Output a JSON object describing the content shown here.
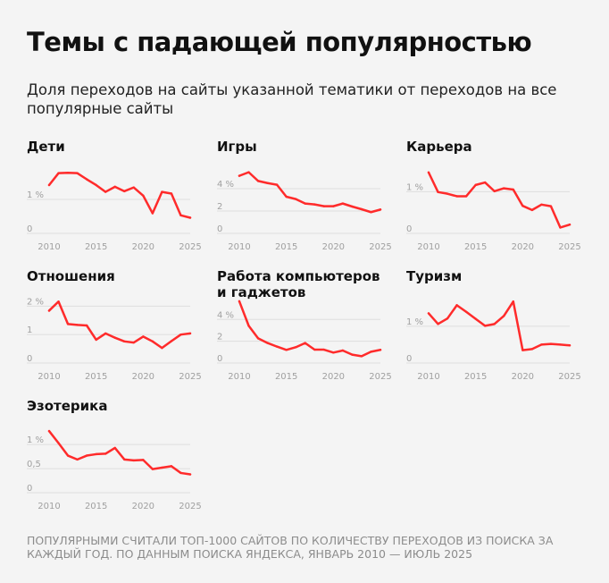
{
  "header": {
    "title": "Темы с падающей популярностью",
    "subtitle": "Доля переходов на сайты указанной тематики от переходов на все популярные сайты"
  },
  "footnote": "Популярными считали топ-1000 сайтов по количеству переходов из поиска за каждый год. По данным поиска Яндекса, январь 2010 — июль 2025",
  "colors": {
    "line": "#ff2b2b",
    "grid": "#dedede",
    "tick": "#a0a0a0",
    "background": "#f4f4f4"
  },
  "chart_data": [
    {
      "type": "line",
      "title": "Дети",
      "x": [
        2010,
        2011,
        2012,
        2013,
        2014,
        2015,
        2016,
        2017,
        2018,
        2019,
        2020,
        2021,
        2022,
        2023,
        2024,
        2025
      ],
      "values": [
        1.42,
        1.77,
        1.78,
        1.77,
        1.59,
        1.42,
        1.22,
        1.37,
        1.24,
        1.35,
        1.11,
        0.59,
        1.22,
        1.17,
        0.53,
        0.46
      ],
      "ylim": [
        0,
        1.84
      ],
      "yticks": [
        0,
        1
      ],
      "ytick_labels": [
        "0",
        "1 %"
      ],
      "xticks": [
        2010,
        2015,
        2020,
        2025
      ],
      "xtick_labels": [
        "2010",
        "2015",
        "2020",
        "2025"
      ],
      "grid": true
    },
    {
      "type": "line",
      "title": "Игры",
      "x": [
        2010,
        2011,
        2012,
        2013,
        2014,
        2015,
        2016,
        2017,
        2018,
        2019,
        2020,
        2021,
        2022,
        2023,
        2024,
        2025
      ],
      "values": [
        5.15,
        5.47,
        4.69,
        4.5,
        4.35,
        3.28,
        3.07,
        2.67,
        2.59,
        2.43,
        2.43,
        2.67,
        2.4,
        2.16,
        1.9,
        2.13
      ],
      "ylim": [
        0,
        5.6
      ],
      "yticks": [
        0,
        2,
        4
      ],
      "ytick_labels": [
        "0",
        "2",
        "4 %"
      ],
      "xticks": [
        2010,
        2015,
        2020,
        2025
      ],
      "xtick_labels": [
        "2010",
        "2015",
        "2020",
        "2025"
      ],
      "grid": true
    },
    {
      "type": "line",
      "title": "Карьера",
      "x": [
        2010,
        2011,
        2012,
        2013,
        2014,
        2015,
        2016,
        2017,
        2018,
        2019,
        2020,
        2021,
        2022,
        2023,
        2024,
        2025
      ],
      "values": [
        1.46,
        0.99,
        0.95,
        0.89,
        0.89,
        1.16,
        1.22,
        1.01,
        1.08,
        1.05,
        0.66,
        0.56,
        0.69,
        0.65,
        0.14,
        0.21
      ],
      "ylim": [
        0,
        1.5
      ],
      "yticks": [
        0,
        1
      ],
      "ytick_labels": [
        "0",
        "1 %"
      ],
      "xticks": [
        2010,
        2015,
        2020,
        2025
      ],
      "xtick_labels": [
        "2010",
        "2015",
        "2020",
        "2025"
      ],
      "grid": true
    },
    {
      "type": "line",
      "title": "Отношения",
      "x": [
        2010,
        2011,
        2012,
        2013,
        2014,
        2015,
        2016,
        2017,
        2018,
        2019,
        2020,
        2021,
        2022,
        2023,
        2024,
        2025
      ],
      "values": [
        1.84,
        2.16,
        1.37,
        1.34,
        1.32,
        0.82,
        1.04,
        0.89,
        0.76,
        0.72,
        0.93,
        0.76,
        0.53,
        0.77,
        1.0,
        1.04
      ],
      "ylim": [
        0,
        2.2
      ],
      "yticks": [
        0,
        1,
        2
      ],
      "ytick_labels": [
        "0",
        "1",
        "2 %"
      ],
      "xticks": [
        2010,
        2015,
        2020,
        2025
      ],
      "xtick_labels": [
        "2010",
        "2015",
        "2020",
        "2025"
      ],
      "grid": true
    },
    {
      "type": "line",
      "title": "Работа компьютеров и гаджетов",
      "x": [
        2010,
        2011,
        2012,
        2013,
        2014,
        2015,
        2016,
        2017,
        2018,
        2019,
        2020,
        2021,
        2022,
        2023,
        2024,
        2025
      ],
      "values": [
        5.67,
        3.42,
        2.27,
        1.84,
        1.51,
        1.21,
        1.45,
        1.84,
        1.23,
        1.23,
        0.96,
        1.15,
        0.77,
        0.63,
        1.04,
        1.21
      ],
      "ylim": [
        0,
        5.75
      ],
      "yticks": [
        0,
        2,
        4
      ],
      "ytick_labels": [
        "0",
        "2",
        "4 %"
      ],
      "xticks": [
        2010,
        2015,
        2020,
        2025
      ],
      "xtick_labels": [
        "2010",
        "2015",
        "2020",
        "2025"
      ],
      "grid": true
    },
    {
      "type": "line",
      "title": "Туризм",
      "x": [
        2010,
        2011,
        2012,
        2013,
        2014,
        2015,
        2016,
        2017,
        2018,
        2019,
        2020,
        2021,
        2022,
        2023,
        2024,
        2025
      ],
      "values": [
        1.35,
        1.06,
        1.21,
        1.57,
        1.39,
        1.2,
        1.01,
        1.06,
        1.28,
        1.67,
        0.35,
        0.38,
        0.5,
        0.52,
        0.5,
        0.48
      ],
      "ylim": [
        0,
        1.7
      ],
      "yticks": [
        0,
        1
      ],
      "ytick_labels": [
        "0",
        "1 %"
      ],
      "xticks": [
        2010,
        2015,
        2020,
        2025
      ],
      "xtick_labels": [
        "2010",
        "2015",
        "2020",
        "2025"
      ],
      "grid": true
    },
    {
      "type": "line",
      "title": "Эзотерика",
      "x": [
        2010,
        2011,
        2012,
        2013,
        2014,
        2015,
        2016,
        2017,
        2018,
        2019,
        2020,
        2021,
        2022,
        2023,
        2024,
        2025
      ],
      "values": [
        1.28,
        1.03,
        0.77,
        0.69,
        0.77,
        0.8,
        0.81,
        0.93,
        0.69,
        0.67,
        0.68,
        0.49,
        0.52,
        0.55,
        0.41,
        0.38
      ],
      "ylim": [
        0,
        1.3
      ],
      "yticks": [
        0,
        0.5,
        1
      ],
      "ytick_labels": [
        "0",
        "0,5",
        "1 %"
      ],
      "xticks": [
        2010,
        2015,
        2020,
        2025
      ],
      "xtick_labels": [
        "2010",
        "2015",
        "2020",
        "2025"
      ],
      "grid": true
    }
  ]
}
